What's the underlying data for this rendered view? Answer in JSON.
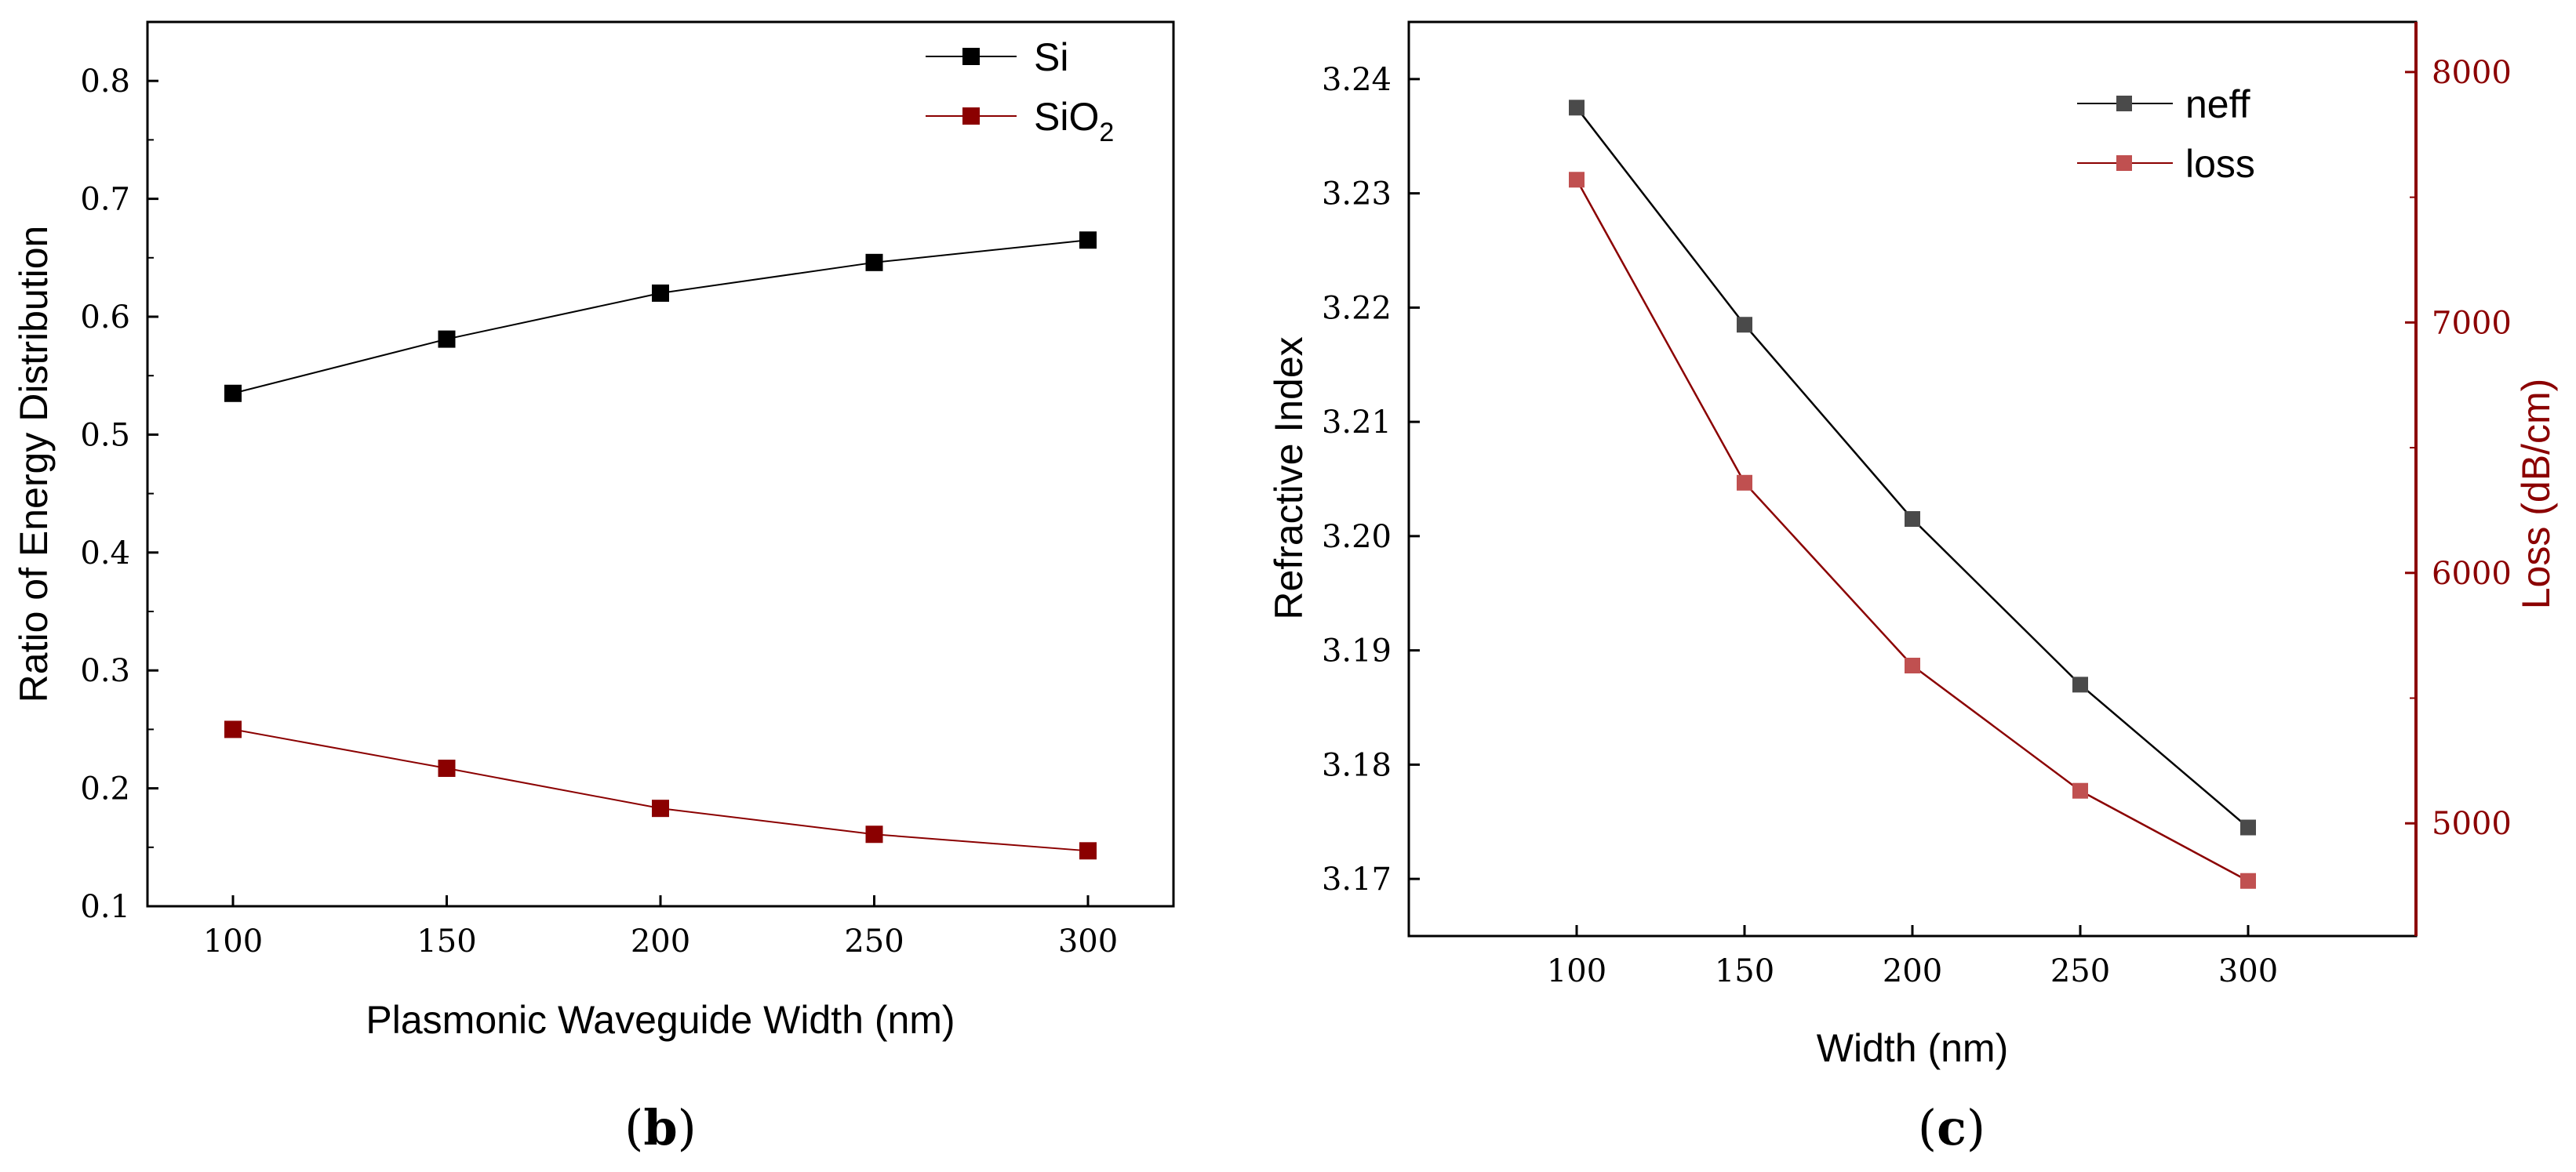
{
  "colors": {
    "black": "#000000",
    "dark_red": "#8b0000",
    "neff_marker": "#4a4a4a",
    "loss_marker": "#c05050",
    "loss_axis": "#8b0000"
  },
  "chart_data": [
    {
      "type": "line",
      "panel_label": "b",
      "xlabel": "Plasmonic Waveguide Width (nm)",
      "ylabel": "Ratio of Energy Distribution",
      "x": [
        100,
        150,
        200,
        250,
        300
      ],
      "xticks": [
        100,
        150,
        200,
        250,
        300
      ],
      "xlim": [
        80,
        320
      ],
      "ylim": [
        0.1,
        0.85
      ],
      "yticks": [
        0.1,
        0.2,
        0.3,
        0.4,
        0.5,
        0.6,
        0.7,
        0.8
      ],
      "series": [
        {
          "name": "Si",
          "legend_base": "Si",
          "legend_sub": "",
          "values": [
            0.535,
            0.581,
            0.62,
            0.646,
            0.665
          ],
          "color": "#000000"
        },
        {
          "name": "SiO2",
          "legend_base": "SiO",
          "legend_sub": "2",
          "values": [
            0.25,
            0.217,
            0.183,
            0.161,
            0.147
          ],
          "color": "#8b0000"
        }
      ]
    },
    {
      "type": "line",
      "panel_label": "c",
      "xlabel": "Width (nm)",
      "ylabel": "Refractive Index",
      "ylabel_right": "Loss (dB/cm)",
      "x": [
        100,
        150,
        200,
        250,
        300
      ],
      "xticks": [
        100,
        150,
        200,
        250,
        300
      ],
      "xlim": [
        50,
        350
      ],
      "ylim": [
        3.165,
        3.245
      ],
      "yticks": [
        3.17,
        3.18,
        3.19,
        3.2,
        3.21,
        3.22,
        3.23,
        3.24
      ],
      "ylim_right": [
        4550,
        8200
      ],
      "yticks_right": [
        5000,
        6000,
        7000,
        8000
      ],
      "series": [
        {
          "name": "neff",
          "axis": "left",
          "values": [
            3.2375,
            3.2185,
            3.2015,
            3.187,
            3.1745
          ],
          "color": "#000000"
        },
        {
          "name": "loss",
          "axis": "right",
          "values": [
            7570,
            6360,
            5630,
            5130,
            4770
          ],
          "color": "#8b0000"
        }
      ]
    }
  ]
}
